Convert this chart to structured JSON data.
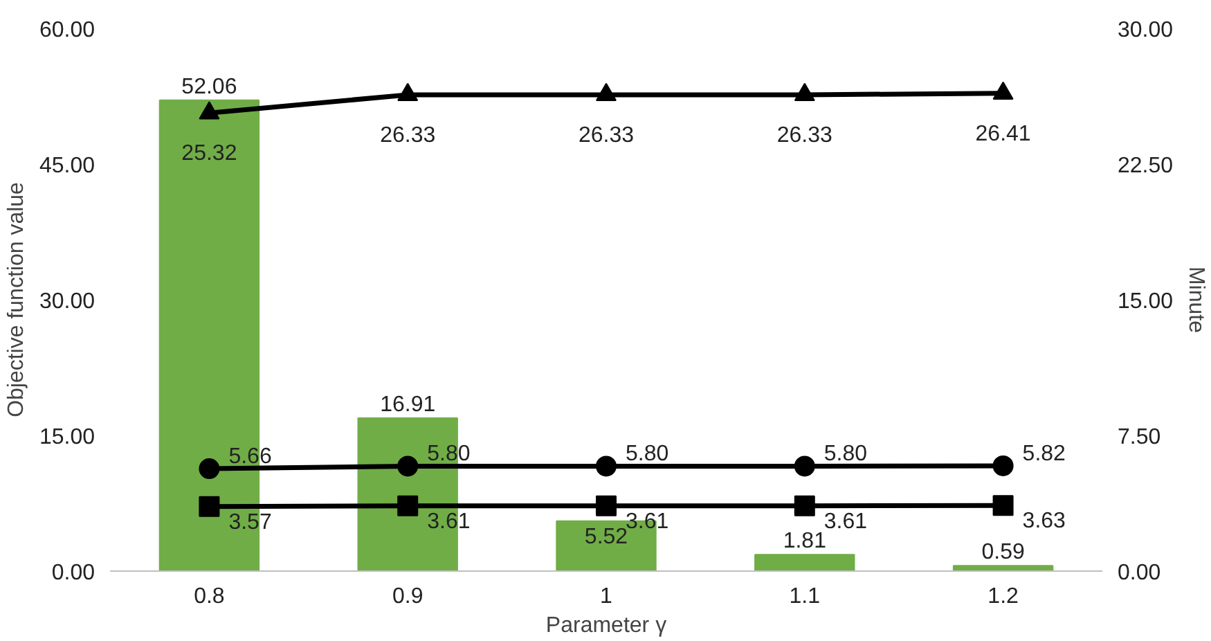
{
  "chart_data": {
    "type": "bar",
    "xlabel": "Parameter γ",
    "ylabel": "Objective function value",
    "y2label": "Minute",
    "categories": [
      "0.8",
      "0.9",
      "1",
      "1.1",
      "1.2"
    ],
    "series": [
      {
        "color": "#70ad47",
        "values": [
          52.06,
          16.91,
          5.52,
          1.81,
          0.59
        ],
        "value_labels": [
          "52.06",
          "16.91",
          "5.52",
          "1.81",
          "0.59"
        ]
      },
      {
        "type": "line",
        "axis": "y2",
        "marker": "triangle",
        "color": "#000000",
        "values": [
          25.32,
          26.33,
          26.33,
          26.33,
          26.41
        ],
        "value_labels": [
          "25.32",
          "26.33",
          "26.33",
          "26.33",
          "26.41"
        ]
      },
      {
        "type": "line",
        "axis": "y2",
        "marker": "circle",
        "color": "#000000",
        "values": [
          5.66,
          5.8,
          5.8,
          5.8,
          5.82
        ],
        "value_labels": [
          "5.66",
          "5.80",
          "5.80",
          "5.80",
          "5.82"
        ]
      },
      {
        "type": "line",
        "axis": "y2",
        "marker": "square",
        "color": "#000000",
        "values": [
          3.57,
          3.61,
          3.61,
          3.61,
          3.63
        ],
        "value_labels": [
          "3.57",
          "3.61",
          "3.61",
          "3.61",
          "3.63"
        ]
      }
    ],
    "ylim": [
      0,
      60
    ],
    "yticks": [
      {
        "value": 0,
        "label": "0.00"
      },
      {
        "value": 15,
        "label": "15.00"
      },
      {
        "value": 30,
        "label": "30.00"
      },
      {
        "value": 45,
        "label": "45.00"
      },
      {
        "value": 60,
        "label": "60.00"
      }
    ],
    "y2lim": [
      0,
      30
    ],
    "y2ticks": [
      {
        "value": 0,
        "label": "0.00"
      },
      {
        "value": 7.5,
        "label": "7.50"
      },
      {
        "value": 15,
        "label": "15.00"
      },
      {
        "value": 22.5,
        "label": "22.50"
      },
      {
        "value": 30,
        "label": "30.00"
      }
    ],
    "grid": false
  }
}
